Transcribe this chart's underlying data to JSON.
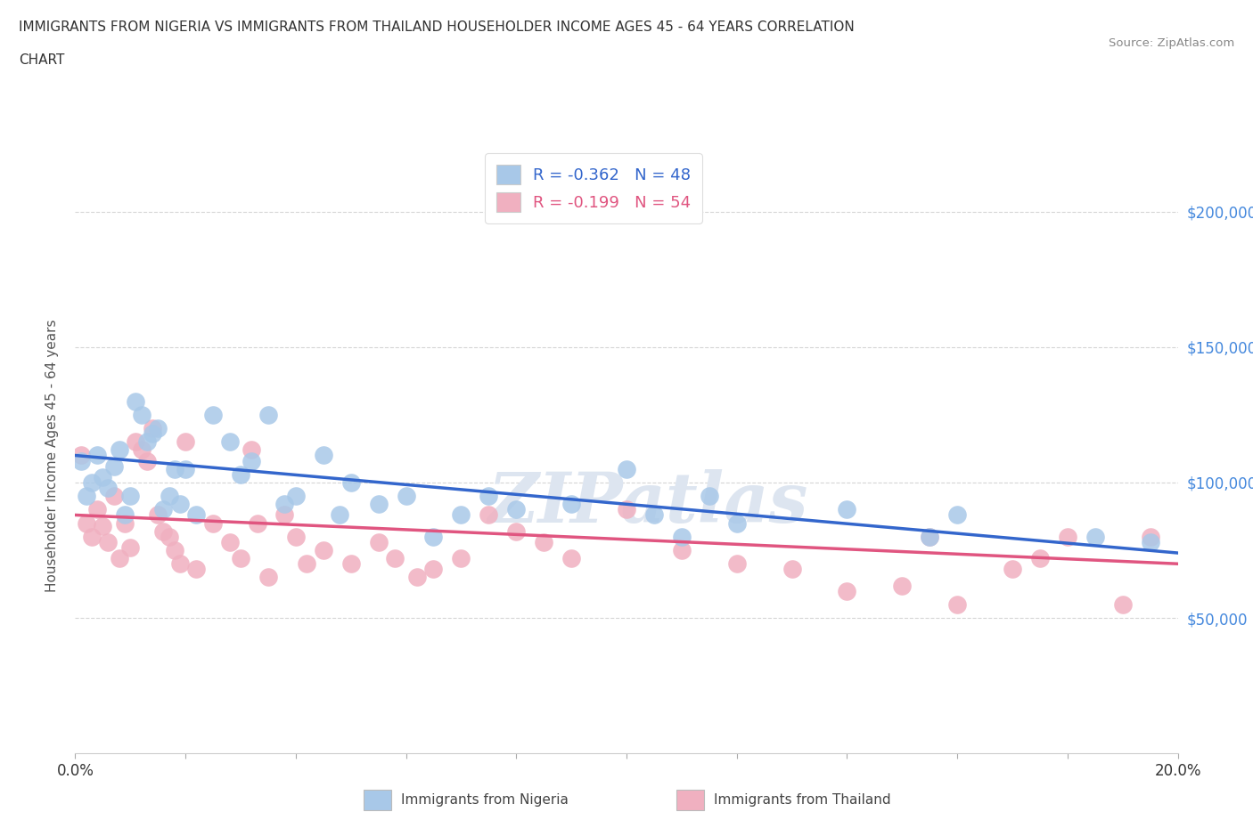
{
  "title_line1": "IMMIGRANTS FROM NIGERIA VS IMMIGRANTS FROM THAILAND HOUSEHOLDER INCOME AGES 45 - 64 YEARS CORRELATION",
  "title_line2": "CHART",
  "source": "Source: ZipAtlas.com",
  "ylabel": "Householder Income Ages 45 - 64 years",
  "nigeria_R": -0.362,
  "nigeria_N": 48,
  "thailand_R": -0.199,
  "thailand_N": 54,
  "nigeria_color": "#a8c8e8",
  "thailand_color": "#f0b0c0",
  "nigeria_line_color": "#3366cc",
  "thailand_line_color": "#e05580",
  "background_color": "#ffffff",
  "grid_color": "#bbbbbb",
  "watermark_text": "ZIPatlas",
  "watermark_color": "#dde5f0",
  "xlim": [
    0.0,
    0.2
  ],
  "ylim": [
    0,
    220000
  ],
  "yticks": [
    50000,
    100000,
    150000,
    200000
  ],
  "ytick_labels": [
    "$50,000",
    "$100,000",
    "$150,000",
    "$200,000"
  ],
  "nigeria_line_x0": 0.0,
  "nigeria_line_y0": 110000,
  "nigeria_line_x1": 0.2,
  "nigeria_line_y1": 74000,
  "thailand_line_x0": 0.0,
  "thailand_line_y0": 88000,
  "thailand_line_x1": 0.2,
  "thailand_line_y1": 70000,
  "nigeria_x": [
    0.001,
    0.002,
    0.003,
    0.004,
    0.005,
    0.006,
    0.007,
    0.008,
    0.009,
    0.01,
    0.011,
    0.012,
    0.013,
    0.014,
    0.015,
    0.016,
    0.017,
    0.018,
    0.019,
    0.02,
    0.022,
    0.025,
    0.028,
    0.03,
    0.032,
    0.035,
    0.038,
    0.04,
    0.045,
    0.048,
    0.05,
    0.055,
    0.06,
    0.065,
    0.07,
    0.075,
    0.08,
    0.09,
    0.1,
    0.105,
    0.11,
    0.115,
    0.12,
    0.14,
    0.155,
    0.16,
    0.185,
    0.195
  ],
  "nigeria_y": [
    108000,
    95000,
    100000,
    110000,
    102000,
    98000,
    106000,
    112000,
    88000,
    95000,
    130000,
    125000,
    115000,
    118000,
    120000,
    90000,
    95000,
    105000,
    92000,
    105000,
    88000,
    125000,
    115000,
    103000,
    108000,
    125000,
    92000,
    95000,
    110000,
    88000,
    100000,
    92000,
    95000,
    80000,
    88000,
    95000,
    90000,
    92000,
    105000,
    88000,
    80000,
    95000,
    85000,
    90000,
    80000,
    88000,
    80000,
    78000
  ],
  "thailand_x": [
    0.001,
    0.002,
    0.003,
    0.004,
    0.005,
    0.006,
    0.007,
    0.008,
    0.009,
    0.01,
    0.011,
    0.012,
    0.013,
    0.014,
    0.015,
    0.016,
    0.017,
    0.018,
    0.019,
    0.02,
    0.022,
    0.025,
    0.028,
    0.03,
    0.032,
    0.033,
    0.035,
    0.038,
    0.04,
    0.042,
    0.045,
    0.05,
    0.055,
    0.058,
    0.062,
    0.065,
    0.07,
    0.075,
    0.08,
    0.085,
    0.09,
    0.1,
    0.11,
    0.12,
    0.13,
    0.14,
    0.15,
    0.155,
    0.16,
    0.17,
    0.175,
    0.18,
    0.19,
    0.195
  ],
  "thailand_y": [
    110000,
    85000,
    80000,
    90000,
    84000,
    78000,
    95000,
    72000,
    85000,
    76000,
    115000,
    112000,
    108000,
    120000,
    88000,
    82000,
    80000,
    75000,
    70000,
    115000,
    68000,
    85000,
    78000,
    72000,
    112000,
    85000,
    65000,
    88000,
    80000,
    70000,
    75000,
    70000,
    78000,
    72000,
    65000,
    68000,
    72000,
    88000,
    82000,
    78000,
    72000,
    90000,
    75000,
    70000,
    68000,
    60000,
    62000,
    80000,
    55000,
    68000,
    72000,
    80000,
    55000,
    80000
  ]
}
